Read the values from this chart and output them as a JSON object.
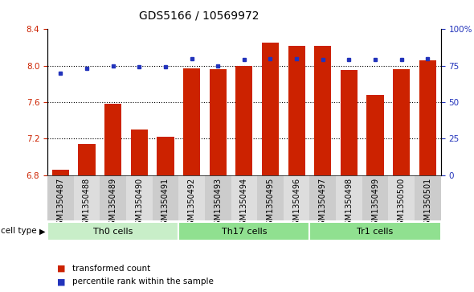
{
  "title": "GDS5166 / 10569972",
  "samples": [
    "GSM1350487",
    "GSM1350488",
    "GSM1350489",
    "GSM1350490",
    "GSM1350491",
    "GSM1350492",
    "GSM1350493",
    "GSM1350494",
    "GSM1350495",
    "GSM1350496",
    "GSM1350497",
    "GSM1350498",
    "GSM1350499",
    "GSM1350500",
    "GSM1350501"
  ],
  "bar_values": [
    6.86,
    7.14,
    7.58,
    7.3,
    7.22,
    7.97,
    7.96,
    8.0,
    8.25,
    8.22,
    8.22,
    7.95,
    7.68,
    7.96,
    8.06
  ],
  "dot_values": [
    70,
    73,
    75,
    74,
    74,
    80,
    75,
    79,
    80,
    80,
    79,
    79,
    79,
    79,
    80
  ],
  "bar_color": "#cc2200",
  "dot_color": "#2233bb",
  "ylim_left": [
    6.8,
    8.4
  ],
  "ylim_right": [
    0,
    100
  ],
  "yticks_left": [
    6.8,
    7.2,
    7.6,
    8.0,
    8.4
  ],
  "yticks_right": [
    0,
    25,
    50,
    75,
    100
  ],
  "ytick_labels_right": [
    "0",
    "25",
    "50",
    "75",
    "100%"
  ],
  "grid_values": [
    7.2,
    7.6,
    8.0
  ],
  "cell_groups": [
    {
      "label": "Th0 cells",
      "start": 0,
      "end": 5,
      "color": "#c8eec8"
    },
    {
      "label": "Th17 cells",
      "start": 5,
      "end": 10,
      "color": "#90e090"
    },
    {
      "label": "Tr1 cells",
      "start": 10,
      "end": 15,
      "color": "#90e090"
    }
  ],
  "legend_bar_label": "transformed count",
  "legend_dot_label": "percentile rank within the sample",
  "title_fontsize": 10,
  "tick_fontsize": 7.5,
  "label_fontsize": 7
}
